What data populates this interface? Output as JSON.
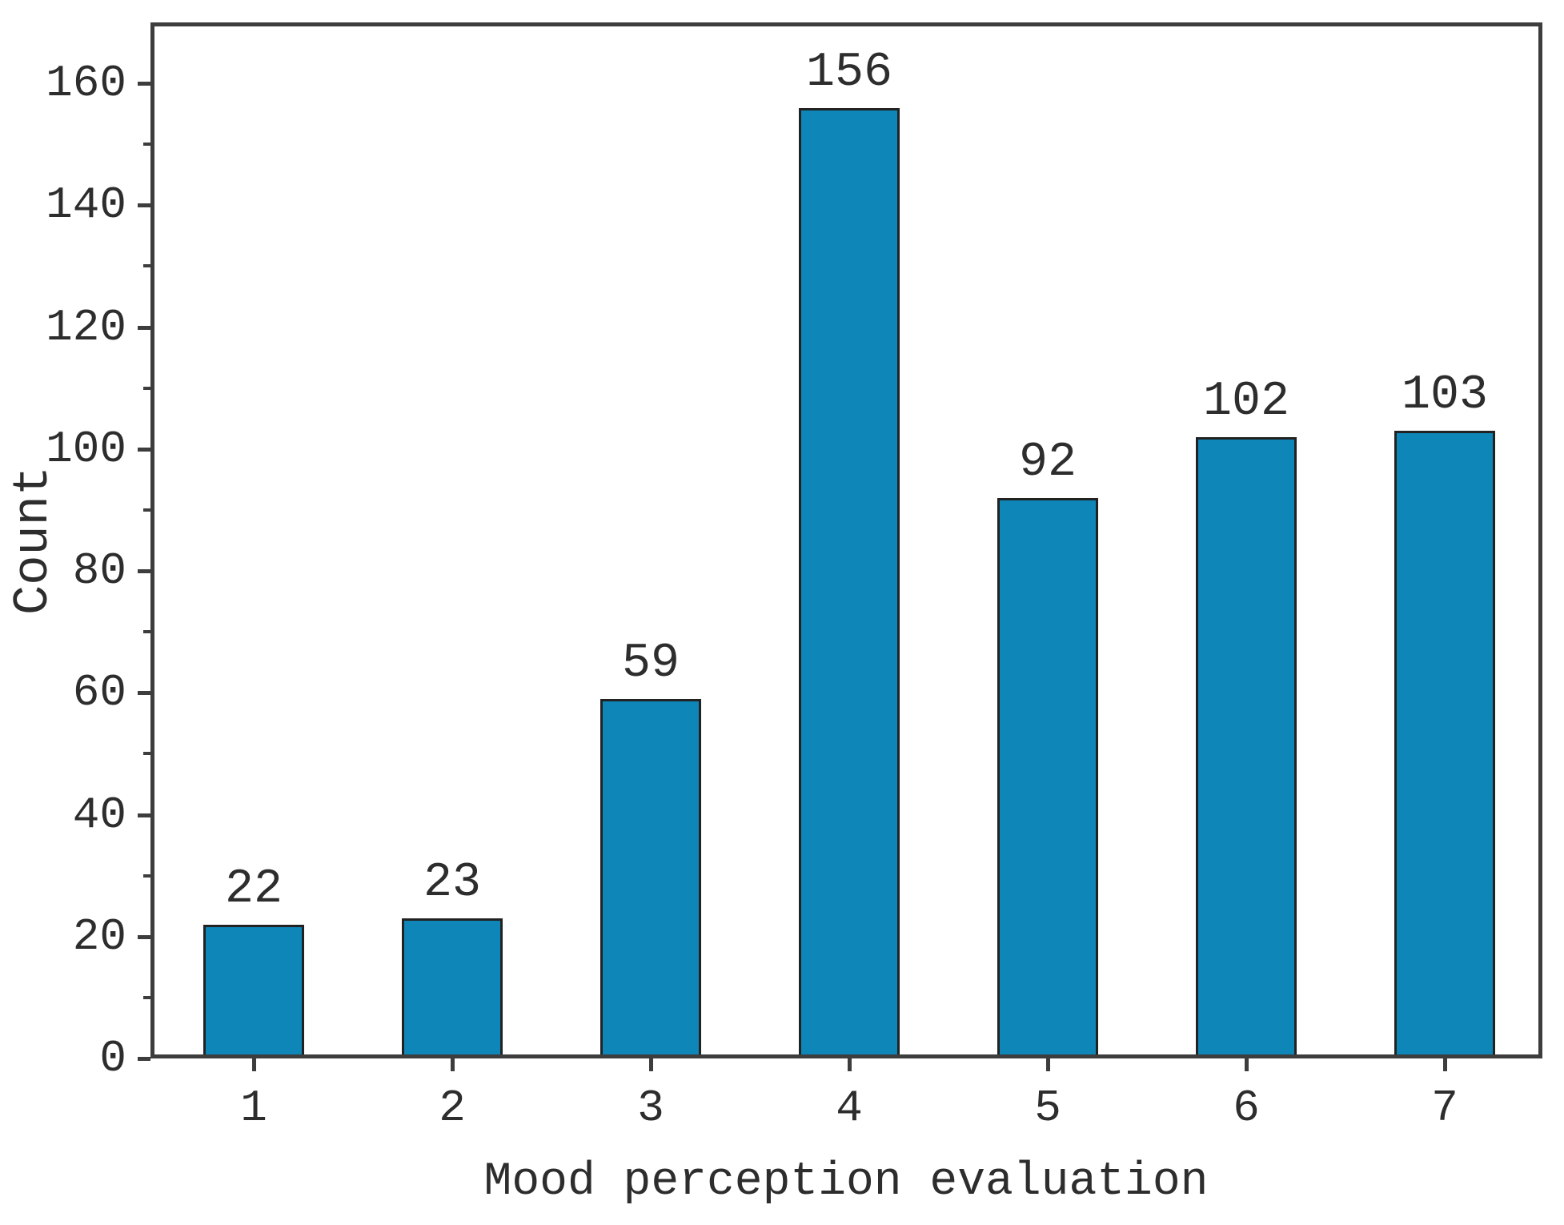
{
  "chart_data": {
    "type": "bar",
    "categories": [
      "1",
      "2",
      "3",
      "4",
      "5",
      "6",
      "7"
    ],
    "values": [
      22,
      23,
      59,
      156,
      92,
      102,
      103
    ],
    "bar_labels": [
      "22",
      "23",
      "59",
      "156",
      "92",
      "102",
      "103"
    ],
    "title": "",
    "xlabel": "Mood perception evaluation",
    "ylabel": "Count",
    "ylim": [
      0,
      170
    ],
    "yticks": [
      0,
      20,
      40,
      60,
      80,
      100,
      120,
      140,
      160
    ],
    "y_minor_ticks": [
      10,
      30,
      50,
      70,
      90,
      110,
      130,
      150
    ],
    "grid": false,
    "legend": false,
    "colors": {
      "bar_fill": "#0e86b8",
      "bar_edge": "#222222",
      "axis": "#3d3d3d",
      "text": "#2d2d2d",
      "background": "#ffffff"
    }
  }
}
